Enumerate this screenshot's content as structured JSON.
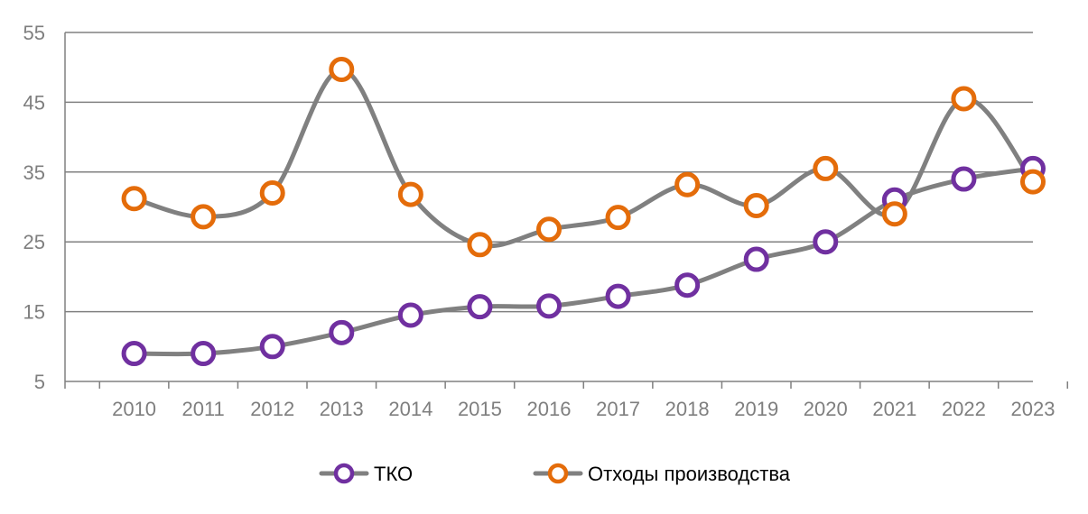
{
  "chart_data": {
    "type": "line",
    "x": [
      "2010",
      "2011",
      "2012",
      "2013",
      "2014",
      "2015",
      "2016",
      "2017",
      "2018",
      "2019",
      "2020",
      "2021",
      "2022",
      "2023"
    ],
    "ylim": [
      5,
      55
    ],
    "yticks": [
      "5",
      "15",
      "25",
      "35",
      "45",
      "55"
    ],
    "grid": true,
    "legend_position": "bottom",
    "line_color": "#808080",
    "series": [
      {
        "name": "ТКО",
        "marker_color": "#7030a0",
        "values": [
          9.0,
          9.0,
          10.0,
          12.0,
          14.5,
          15.7,
          15.8,
          17.2,
          18.8,
          22.5,
          25.0,
          31.0,
          34.0,
          35.5
        ]
      },
      {
        "name": "Отходы производства",
        "marker_color": "#e46c0a",
        "values": [
          31.2,
          28.6,
          32.0,
          49.7,
          31.8,
          24.6,
          26.8,
          28.5,
          33.2,
          30.2,
          35.5,
          29.0,
          45.5,
          33.6
        ]
      }
    ]
  }
}
